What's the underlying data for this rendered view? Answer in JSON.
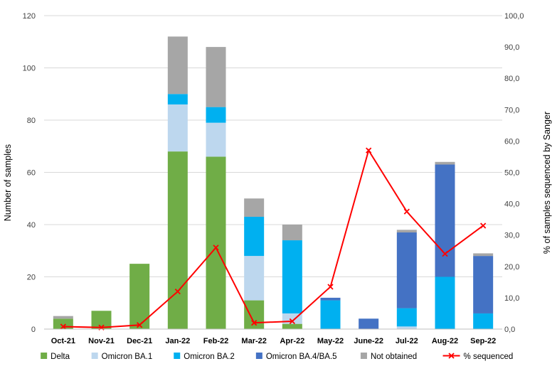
{
  "chart_data": {
    "type": "bar",
    "stacked": true,
    "categories": [
      "Oct-21",
      "Nov-21",
      "Dec-21",
      "Jan-22",
      "Feb-22",
      "Mar-22",
      "Apr-22",
      "May-22",
      "June-22",
      "Jul-22",
      "Aug-22",
      "Sep-22"
    ],
    "series": [
      {
        "name": "Delta",
        "color": "#70ad47",
        "values": [
          4,
          7,
          25,
          68,
          66,
          11,
          2,
          0,
          0,
          0,
          0,
          0
        ]
      },
      {
        "name": "Omicron BA.1",
        "color": "#bdd7ee",
        "values": [
          0,
          0,
          0,
          18,
          13,
          17,
          4,
          0,
          0,
          1,
          0,
          0
        ]
      },
      {
        "name": "Omicron BA.2",
        "color": "#00b0f0",
        "values": [
          0,
          0,
          0,
          4,
          6,
          15,
          28,
          11,
          0,
          7,
          20,
          6
        ]
      },
      {
        "name": "Omicron BA.4/BA.5",
        "color": "#4472c4",
        "values": [
          0,
          0,
          0,
          0,
          0,
          0,
          0,
          1,
          4,
          29,
          43,
          22
        ]
      },
      {
        "name": "Not obtained",
        "color": "#a6a6a6",
        "values": [
          1,
          0,
          0,
          22,
          23,
          7,
          6,
          0,
          0,
          1,
          1,
          1
        ]
      }
    ],
    "line_series": {
      "name": "% sequenced",
      "color": "#ff0000",
      "axis": "right",
      "values": [
        0.8,
        0.5,
        1.3,
        12.0,
        26.0,
        2.0,
        2.5,
        13.5,
        57.0,
        37.5,
        24.0,
        33.0
      ]
    },
    "ylabel": "Number of samples",
    "ylim": [
      0,
      120
    ],
    "yticks": [
      "0",
      "20",
      "40",
      "60",
      "80",
      "100",
      "120"
    ],
    "y2label": "% of samples sequenced by Sanger",
    "y2lim": [
      0,
      100
    ],
    "y2ticks": [
      "0,0",
      "10,0",
      "20,0",
      "30,0",
      "40,0",
      "50,0",
      "60,0",
      "70,0",
      "80,0",
      "90,0",
      "100,0"
    ],
    "grid": true,
    "legend_position": "bottom"
  }
}
